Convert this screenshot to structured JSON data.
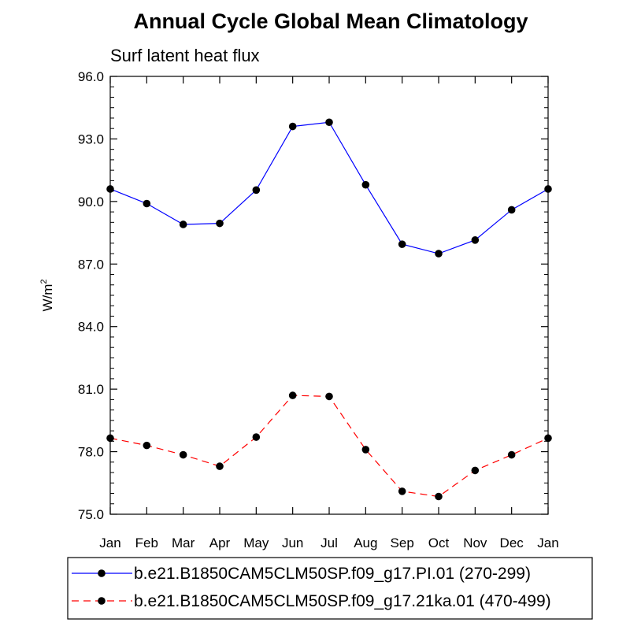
{
  "chart_data": {
    "type": "line",
    "title": "Annual Cycle Global Mean Climatology",
    "subtitle": "Surf latent heat flux",
    "xlabel": "",
    "ylabel_base": "W/m",
    "ylabel_sup": "2",
    "categories": [
      "Jan",
      "Feb",
      "Mar",
      "Apr",
      "May",
      "Jun",
      "Jul",
      "Aug",
      "Sep",
      "Oct",
      "Nov",
      "Dec",
      "Jan"
    ],
    "ylim": [
      75.0,
      96.0
    ],
    "yticks": [
      75.0,
      78.0,
      81.0,
      84.0,
      87.0,
      90.0,
      93.0,
      96.0
    ],
    "ytick_labels": [
      "75.0",
      "78.0",
      "81.0",
      "84.0",
      "87.0",
      "90.0",
      "93.0",
      "96.0"
    ],
    "series": [
      {
        "name": "b.e21.B1850CAM5CLM50SP.f09_g17.PI.01 (270-299)",
        "color": "#0000ff",
        "dash": "solid",
        "values": [
          90.6,
          89.9,
          88.9,
          88.95,
          90.55,
          93.6,
          93.8,
          90.8,
          87.95,
          87.5,
          88.15,
          89.6,
          90.6
        ]
      },
      {
        "name": "b.e21.B1850CAM5CLM50SP.f09_g17.21ka.01 (470-499)",
        "color": "#ff0000",
        "dash": "dashed",
        "values": [
          78.65,
          78.3,
          77.85,
          77.3,
          78.7,
          80.7,
          80.65,
          78.1,
          76.1,
          75.85,
          77.1,
          77.85,
          78.65
        ]
      }
    ],
    "legend_position": "bottom"
  }
}
